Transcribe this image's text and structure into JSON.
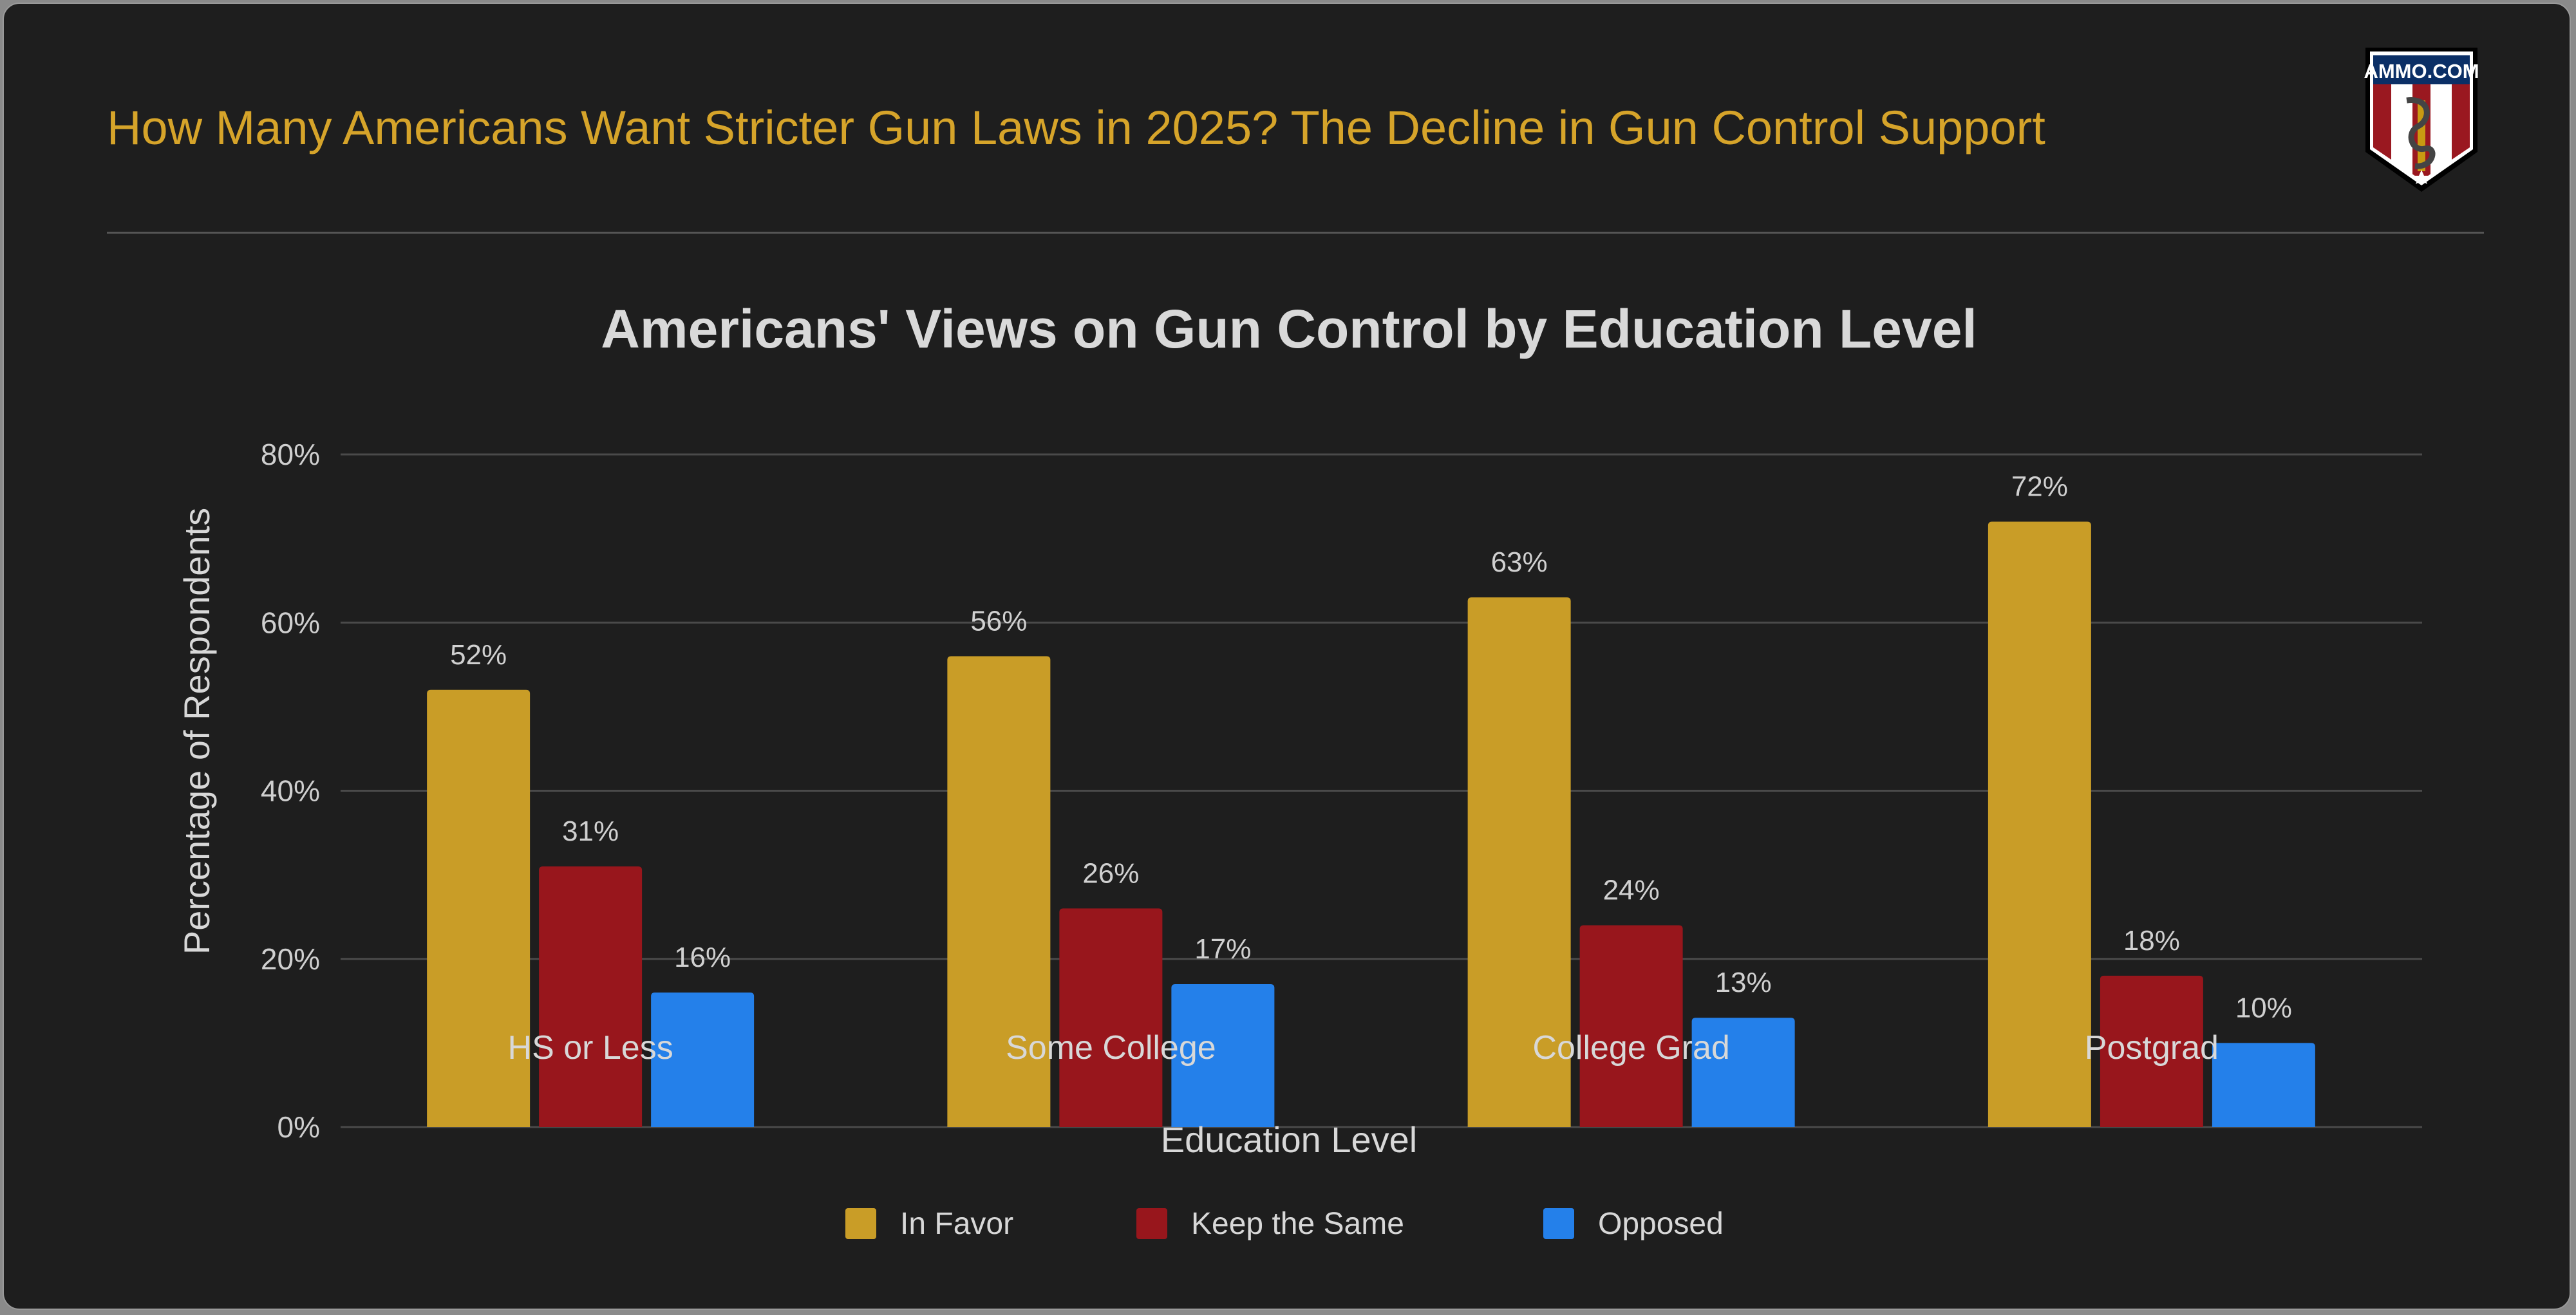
{
  "header": {
    "title": "How Many Americans Want Stricter Gun Laws in 2025? The Decline in Gun Control Support",
    "logo_text": "AMMO.COM"
  },
  "chart_data": {
    "type": "bar",
    "title": "Americans' Views on Gun Control by Education Level",
    "xlabel": "Education Level",
    "ylabel": "Percentage of Respondents",
    "categories": [
      "HS or Less",
      "Some College",
      "College Grad",
      "Postgrad"
    ],
    "ylim": [
      0,
      80
    ],
    "yticks": [
      "0%",
      "20%",
      "40%",
      "60%",
      "80%"
    ],
    "ytick_values": [
      0,
      20,
      40,
      60,
      80
    ],
    "grid": true,
    "legend_position": "bottom",
    "series": [
      {
        "name": "In Favor",
        "color": "#C99D27",
        "values": [
          52,
          56,
          63,
          72
        ],
        "labels": [
          "52%",
          "56%",
          "63%",
          "72%"
        ]
      },
      {
        "name": "Keep the Same",
        "color": "#98161C",
        "values": [
          31,
          26,
          24,
          18
        ],
        "labels": [
          "31%",
          "26%",
          "24%",
          "18%"
        ]
      },
      {
        "name": "Opposed",
        "color": "#2480EA",
        "values": [
          16,
          17,
          13,
          10
        ],
        "labels": [
          "16%",
          "17%",
          "13%",
          "10%"
        ]
      }
    ]
  },
  "colors": {
    "background": "#1e1e1e",
    "title": "#d6a42a"
  }
}
